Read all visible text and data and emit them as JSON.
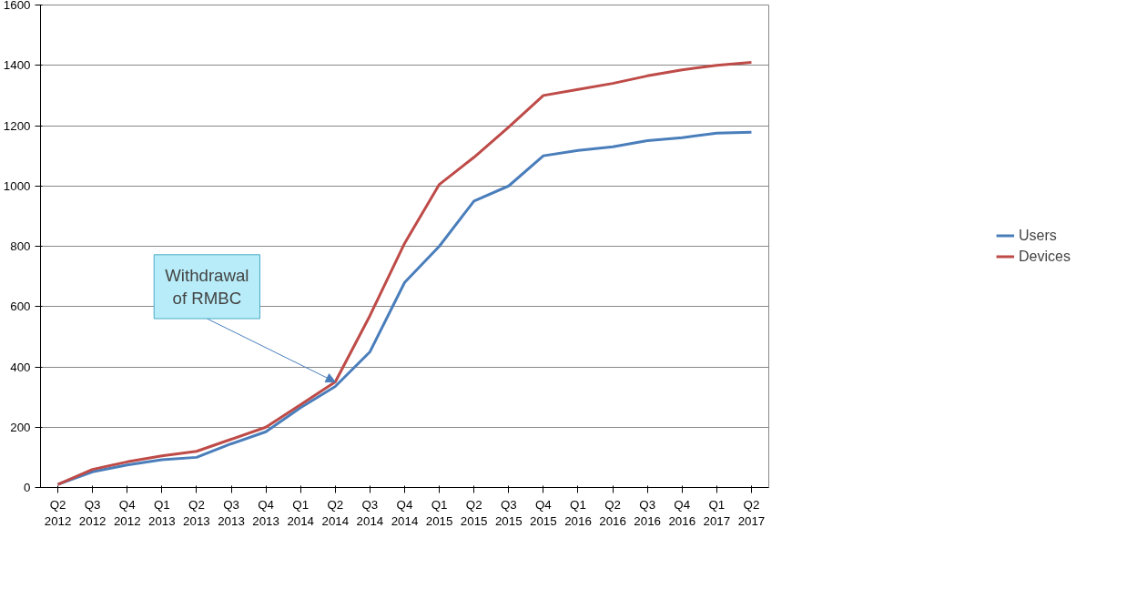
{
  "chart_data": {
    "type": "line",
    "categories": [
      "Q2 2012",
      "Q3 2012",
      "Q4 2012",
      "Q1 2013",
      "Q2 2013",
      "Q3 2013",
      "Q4 2013",
      "Q1 2014",
      "Q2 2014",
      "Q3 2014",
      "Q4 2014",
      "Q1 2015",
      "Q2 2015",
      "Q3 2015",
      "Q4 2015",
      "Q1 2016",
      "Q2 2016",
      "Q3 2016",
      "Q4 2016",
      "Q1 2017",
      "Q2 2017"
    ],
    "series": [
      {
        "name": "Users",
        "color": "#4a7ebb",
        "values": [
          10,
          52,
          75,
          92,
          100,
          145,
          185,
          265,
          335,
          450,
          680,
          800,
          950,
          1000,
          1100,
          1118,
          1130,
          1150,
          1160,
          1175,
          1178
        ]
      },
      {
        "name": "Devices",
        "color": "#be4b48",
        "values": [
          10,
          60,
          85,
          105,
          120,
          160,
          200,
          275,
          350,
          570,
          810,
          1005,
          1095,
          1195,
          1300,
          1320,
          1340,
          1365,
          1385,
          1400,
          1410
        ]
      }
    ],
    "ylim": [
      0,
      1600
    ],
    "yticks": [
      0,
      200,
      400,
      600,
      800,
      1000,
      1200,
      1400,
      1600
    ],
    "grid": "y",
    "legend": "right",
    "marker": "none",
    "line_style": "solid",
    "annotations": [
      {
        "text": "Withdrawal of RMBC",
        "x": "Q2 2014",
        "y": 350
      }
    ]
  }
}
